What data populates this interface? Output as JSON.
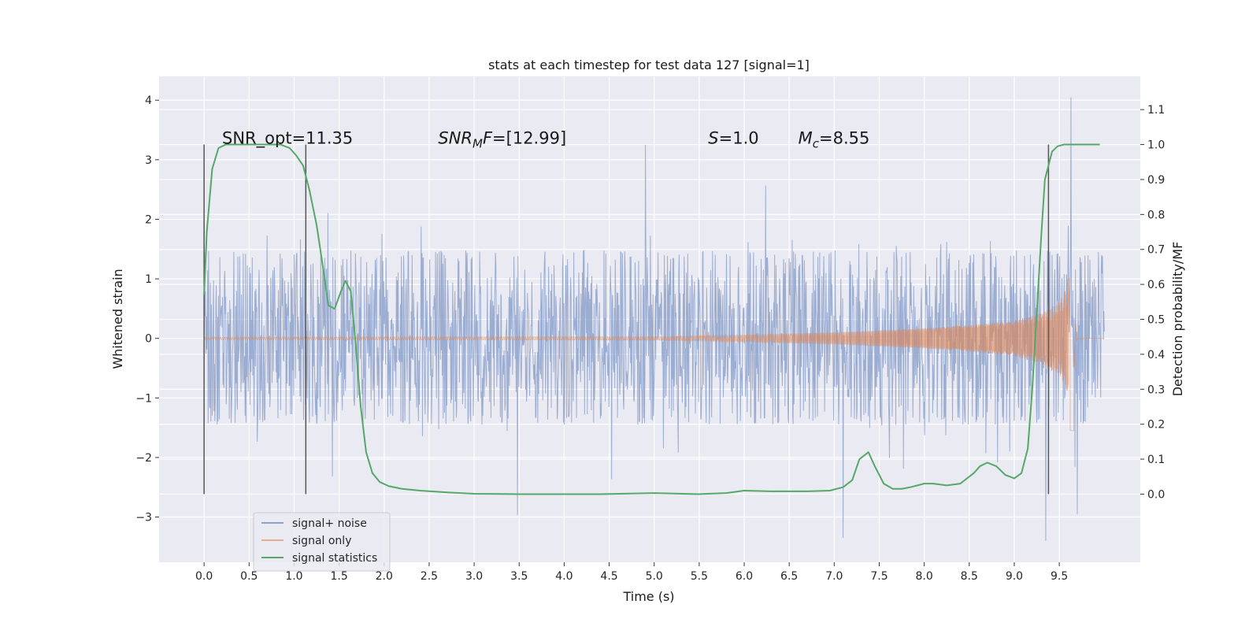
{
  "chart_data": {
    "type": "line",
    "title": "stats at each timestep for test data 127 [signal=1]",
    "xlabel": "Time (s)",
    "ylabel": "Whitened strain",
    "y2label": "Detection probability/MF",
    "xlim": [
      -0.5,
      10.4
    ],
    "ylim": [
      -3.76,
      4.4
    ],
    "y2lim": [
      -0.195,
      1.195
    ],
    "x_ticks": [
      0.0,
      0.5,
      1.0,
      1.5,
      2.0,
      2.5,
      3.0,
      3.5,
      4.0,
      4.5,
      5.0,
      5.5,
      6.0,
      6.5,
      7.0,
      7.5,
      8.0,
      8.5,
      9.0,
      9.5
    ],
    "x_tick_labels": [
      "0.0",
      "0.5",
      "1.0",
      "1.5",
      "2.0",
      "2.5",
      "3.0",
      "3.5",
      "4.0",
      "4.5",
      "5.0",
      "5.5",
      "6.0",
      "6.5",
      "7.0",
      "7.5",
      "8.0",
      "8.5",
      "9.0",
      "9.5"
    ],
    "y_ticks": [
      -3,
      -2,
      -1,
      0,
      1,
      2,
      3,
      4
    ],
    "y_tick_labels": [
      "−3",
      "−2",
      "−1",
      "0",
      "1",
      "2",
      "3",
      "4"
    ],
    "y2_ticks": [
      0.0,
      0.1,
      0.2,
      0.3,
      0.4,
      0.5,
      0.6,
      0.7,
      0.8,
      0.9,
      1.0,
      1.1
    ],
    "y2_tick_labels": [
      "0.0",
      "0.1",
      "0.2",
      "0.3",
      "0.4",
      "0.5",
      "0.6",
      "0.7",
      "0.8",
      "0.9",
      "1.0",
      "1.1"
    ],
    "grid": true,
    "legend_position": "lower-left",
    "annotations": [
      {
        "text": "SNR_opt=11.35",
        "x": 0.2,
        "y2": 1.0
      },
      {
        "text": "SNR_MF=[12.99]",
        "x": 2.6,
        "y2": 1.0
      },
      {
        "text": "S=1.0",
        "x": 5.6,
        "y2": 1.0
      },
      {
        "text": "M_c=8.55",
        "x": 6.6,
        "y2": 1.0
      }
    ],
    "vertical_lines_x": [
      0.0,
      1.13,
      9.38
    ],
    "vertical_lines_y2_range": [
      0.0,
      1.0
    ],
    "series": [
      {
        "name": "signal+ noise",
        "color": "#8ea2cc",
        "axis": "left",
        "description": "whitened strain samples, noise within about ±1.4 with spikes to ±3.3",
        "envelope": {
          "lower": -1.45,
          "upper": 1.48
        },
        "x_range": [
          0.0,
          10.0
        ],
        "extreme_points": [
          [
            9.63,
            4.05
          ],
          [
            9.35,
            -3.4
          ],
          [
            7.1,
            -3.35
          ],
          [
            3.48,
            -2.97
          ],
          [
            4.9,
            3.25
          ],
          [
            9.7,
            -2.95
          ]
        ]
      },
      {
        "name": "signal only",
        "color": "#dd8452",
        "axis": "left",
        "description": "chirp waveform with amplitude growing from ~0 near t=5 to ~1.0 at merger t≈9.65",
        "envelope_amplitude": [
          [
            0.0,
            0.02
          ],
          [
            5.0,
            0.03
          ],
          [
            6.0,
            0.06
          ],
          [
            7.0,
            0.1
          ],
          [
            8.0,
            0.17
          ],
          [
            8.5,
            0.22
          ],
          [
            9.0,
            0.3
          ],
          [
            9.3,
            0.42
          ],
          [
            9.5,
            0.6
          ],
          [
            9.62,
            1.0
          ],
          [
            9.65,
            -1.55
          ],
          [
            9.7,
            0.02
          ],
          [
            10.0,
            0.0
          ]
        ]
      },
      {
        "name": "signal statistics",
        "color": "#55a868",
        "axis": "right",
        "x": [
          0.0,
          0.03,
          0.09,
          0.16,
          0.24,
          0.35,
          0.5,
          0.7,
          0.85,
          0.95,
          1.02,
          1.1,
          1.17,
          1.25,
          1.32,
          1.38,
          1.45,
          1.52,
          1.57,
          1.63,
          1.68,
          1.74,
          1.8,
          1.87,
          1.95,
          2.05,
          2.2,
          2.4,
          2.7,
          3.0,
          3.5,
          4.0,
          4.4,
          5.0,
          5.5,
          5.8,
          6.0,
          6.3,
          6.7,
          6.95,
          7.1,
          7.2,
          7.28,
          7.38,
          7.45,
          7.55,
          7.65,
          7.75,
          7.85,
          8.0,
          8.1,
          8.25,
          8.4,
          8.55,
          8.62,
          8.7,
          8.8,
          8.9,
          9.0,
          9.08,
          9.15,
          9.2,
          9.25,
          9.3,
          9.34,
          9.38,
          9.42,
          9.48,
          9.55,
          9.65,
          9.8,
          9.95
        ],
        "y": [
          0.57,
          0.75,
          0.93,
          0.99,
          1.0,
          1.0,
          1.0,
          1.0,
          1.0,
          0.99,
          0.97,
          0.94,
          0.87,
          0.77,
          0.65,
          0.54,
          0.53,
          0.58,
          0.61,
          0.58,
          0.44,
          0.25,
          0.12,
          0.06,
          0.035,
          0.023,
          0.015,
          0.01,
          0.005,
          0.001,
          0.0,
          0.0,
          0.0,
          0.003,
          0.0,
          0.003,
          0.01,
          0.008,
          0.008,
          0.01,
          0.02,
          0.04,
          0.1,
          0.12,
          0.08,
          0.03,
          0.015,
          0.015,
          0.02,
          0.03,
          0.03,
          0.025,
          0.03,
          0.06,
          0.08,
          0.09,
          0.08,
          0.055,
          0.045,
          0.06,
          0.13,
          0.3,
          0.52,
          0.74,
          0.9,
          0.94,
          0.98,
          0.995,
          1.0,
          1.0,
          1.0,
          1.0
        ]
      }
    ]
  }
}
